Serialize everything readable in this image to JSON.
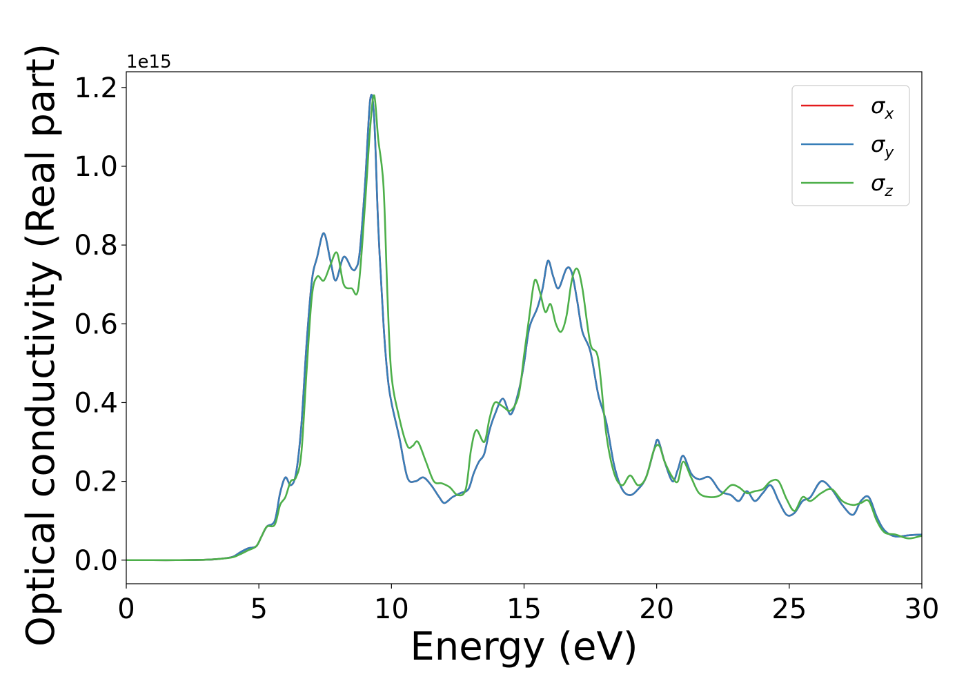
{
  "chart_data": {
    "type": "line",
    "xlabel": "Energy (eV)",
    "ylabel": "Optical conductivity (Real part)",
    "y_offset_label": "1e15",
    "y_scale": 1000000000000000.0,
    "xlim": [
      0,
      30
    ],
    "ylim": [
      -0.06,
      1.24
    ],
    "xticks": [
      0,
      5,
      10,
      15,
      20,
      25,
      30
    ],
    "xtick_labels": [
      "0",
      "5",
      "10",
      "15",
      "20",
      "25",
      "30"
    ],
    "yticks": [
      0.0,
      0.2,
      0.4,
      0.6,
      0.8,
      1.0,
      1.2
    ],
    "ytick_labels": [
      "0.0",
      "0.2",
      "0.4",
      "0.6",
      "0.8",
      "1.0",
      "1.2"
    ],
    "grid": false,
    "legend_position": "top-right",
    "series": [
      {
        "name": "σx",
        "symbol": "σ",
        "subscript": "x",
        "color": "#e41a1c",
        "x": [
          0,
          1,
          2,
          3,
          3.5,
          4,
          4.3,
          4.6,
          4.9,
          5.1,
          5.3,
          5.6,
          5.8,
          6.0,
          6.2,
          6.4,
          6.6,
          6.8,
          7.0,
          7.2,
          7.45,
          7.7,
          7.9,
          8.2,
          8.5,
          8.65,
          8.8,
          9.0,
          9.2,
          9.35,
          9.5,
          9.7,
          9.85,
          10.0,
          10.3,
          10.6,
          10.9,
          11.2,
          11.5,
          11.8,
          12.0,
          12.3,
          12.6,
          12.9,
          13.1,
          13.3,
          13.5,
          13.7,
          13.9,
          14.2,
          14.5,
          14.8,
          15.0,
          15.2,
          15.5,
          15.7,
          15.9,
          16.1,
          16.3,
          16.6,
          16.8,
          17.0,
          17.2,
          17.5,
          17.8,
          18.1,
          18.4,
          18.7,
          19.0,
          19.3,
          19.6,
          19.9,
          20.05,
          20.3,
          20.6,
          20.8,
          21.0,
          21.3,
          21.6,
          22.0,
          22.4,
          22.8,
          23.1,
          23.4,
          23.7,
          24.0,
          24.3,
          24.6,
          24.9,
          25.2,
          25.5,
          25.8,
          26.2,
          26.6,
          27.0,
          27.4,
          27.7,
          28.0,
          28.3,
          28.6,
          29.0,
          29.5,
          30.0
        ],
        "values": [
          0,
          0,
          0,
          0.001,
          0.003,
          0.008,
          0.02,
          0.03,
          0.035,
          0.06,
          0.085,
          0.1,
          0.17,
          0.21,
          0.19,
          0.22,
          0.34,
          0.55,
          0.71,
          0.77,
          0.83,
          0.76,
          0.71,
          0.77,
          0.74,
          0.74,
          0.78,
          0.95,
          1.17,
          1.12,
          0.85,
          0.6,
          0.47,
          0.4,
          0.31,
          0.21,
          0.2,
          0.21,
          0.19,
          0.16,
          0.145,
          0.16,
          0.17,
          0.18,
          0.22,
          0.25,
          0.27,
          0.33,
          0.37,
          0.41,
          0.37,
          0.43,
          0.5,
          0.59,
          0.64,
          0.69,
          0.76,
          0.72,
          0.69,
          0.74,
          0.73,
          0.66,
          0.58,
          0.53,
          0.42,
          0.35,
          0.24,
          0.18,
          0.165,
          0.18,
          0.21,
          0.28,
          0.305,
          0.25,
          0.2,
          0.23,
          0.265,
          0.22,
          0.205,
          0.21,
          0.175,
          0.165,
          0.15,
          0.175,
          0.15,
          0.17,
          0.19,
          0.15,
          0.115,
          0.12,
          0.15,
          0.16,
          0.2,
          0.18,
          0.14,
          0.115,
          0.15,
          0.16,
          0.11,
          0.075,
          0.06,
          0.063,
          0.065
        ]
      },
      {
        "name": "σy",
        "symbol": "σ",
        "subscript": "y",
        "color": "#377eb8",
        "x": [
          0,
          1,
          2,
          3,
          3.5,
          4,
          4.3,
          4.6,
          4.9,
          5.1,
          5.3,
          5.6,
          5.8,
          6.0,
          6.2,
          6.4,
          6.6,
          6.8,
          7.0,
          7.2,
          7.45,
          7.7,
          7.9,
          8.2,
          8.5,
          8.65,
          8.8,
          9.0,
          9.2,
          9.35,
          9.5,
          9.7,
          9.85,
          10.0,
          10.3,
          10.6,
          10.9,
          11.2,
          11.5,
          11.8,
          12.0,
          12.3,
          12.6,
          12.9,
          13.1,
          13.3,
          13.5,
          13.7,
          13.9,
          14.2,
          14.5,
          14.8,
          15.0,
          15.2,
          15.5,
          15.7,
          15.9,
          16.1,
          16.3,
          16.6,
          16.8,
          17.0,
          17.2,
          17.5,
          17.8,
          18.1,
          18.4,
          18.7,
          19.0,
          19.3,
          19.6,
          19.9,
          20.05,
          20.3,
          20.6,
          20.8,
          21.0,
          21.3,
          21.6,
          22.0,
          22.4,
          22.8,
          23.1,
          23.4,
          23.7,
          24.0,
          24.3,
          24.6,
          24.9,
          25.2,
          25.5,
          25.8,
          26.2,
          26.6,
          27.0,
          27.4,
          27.7,
          28.0,
          28.3,
          28.6,
          29.0,
          29.5,
          30.0
        ],
        "values": [
          0,
          0,
          0,
          0.001,
          0.003,
          0.008,
          0.02,
          0.03,
          0.035,
          0.06,
          0.085,
          0.1,
          0.17,
          0.21,
          0.19,
          0.22,
          0.34,
          0.55,
          0.71,
          0.77,
          0.83,
          0.76,
          0.71,
          0.77,
          0.74,
          0.74,
          0.78,
          0.95,
          1.17,
          1.12,
          0.85,
          0.6,
          0.47,
          0.4,
          0.31,
          0.21,
          0.2,
          0.21,
          0.19,
          0.16,
          0.145,
          0.16,
          0.17,
          0.18,
          0.22,
          0.25,
          0.27,
          0.33,
          0.37,
          0.41,
          0.37,
          0.43,
          0.5,
          0.59,
          0.64,
          0.69,
          0.76,
          0.72,
          0.69,
          0.74,
          0.73,
          0.66,
          0.58,
          0.53,
          0.42,
          0.35,
          0.24,
          0.18,
          0.165,
          0.18,
          0.21,
          0.28,
          0.305,
          0.25,
          0.2,
          0.23,
          0.265,
          0.22,
          0.205,
          0.21,
          0.175,
          0.165,
          0.15,
          0.175,
          0.15,
          0.17,
          0.19,
          0.15,
          0.115,
          0.12,
          0.15,
          0.16,
          0.2,
          0.18,
          0.14,
          0.115,
          0.15,
          0.16,
          0.11,
          0.075,
          0.06,
          0.063,
          0.065
        ]
      },
      {
        "name": "σz",
        "symbol": "σ",
        "subscript": "z",
        "color": "#4daf4a",
        "x": [
          0,
          1,
          2,
          3,
          3.5,
          4,
          4.3,
          4.6,
          4.9,
          5.1,
          5.3,
          5.6,
          5.8,
          6.0,
          6.2,
          6.4,
          6.6,
          6.8,
          7.0,
          7.2,
          7.45,
          7.7,
          7.95,
          8.2,
          8.5,
          8.75,
          9.0,
          9.2,
          9.35,
          9.5,
          9.7,
          9.85,
          10.0,
          10.3,
          10.6,
          10.8,
          11.0,
          11.3,
          11.6,
          11.9,
          12.2,
          12.5,
          12.8,
          13.0,
          13.2,
          13.5,
          13.7,
          13.9,
          14.2,
          14.5,
          14.8,
          15.0,
          15.2,
          15.4,
          15.6,
          15.8,
          16.0,
          16.2,
          16.4,
          16.6,
          16.8,
          17.0,
          17.2,
          17.5,
          17.8,
          18.1,
          18.4,
          18.7,
          19.0,
          19.3,
          19.6,
          19.9,
          20.1,
          20.3,
          20.6,
          20.8,
          21.0,
          21.3,
          21.6,
          22.0,
          22.4,
          22.8,
          23.1,
          23.4,
          23.7,
          24.0,
          24.3,
          24.6,
          24.9,
          25.2,
          25.5,
          25.8,
          26.2,
          26.6,
          27.0,
          27.4,
          27.7,
          28.0,
          28.3,
          28.6,
          29.0,
          29.5,
          30.0
        ],
        "values": [
          0,
          0,
          0,
          0.001,
          0.003,
          0.007,
          0.015,
          0.025,
          0.035,
          0.06,
          0.085,
          0.09,
          0.14,
          0.16,
          0.2,
          0.21,
          0.27,
          0.48,
          0.67,
          0.72,
          0.71,
          0.75,
          0.78,
          0.7,
          0.69,
          0.69,
          0.9,
          1.1,
          1.18,
          1.07,
          0.95,
          0.67,
          0.47,
          0.36,
          0.29,
          0.29,
          0.3,
          0.25,
          0.2,
          0.195,
          0.185,
          0.165,
          0.18,
          0.28,
          0.33,
          0.3,
          0.36,
          0.4,
          0.39,
          0.38,
          0.42,
          0.52,
          0.62,
          0.71,
          0.68,
          0.63,
          0.65,
          0.6,
          0.58,
          0.62,
          0.71,
          0.74,
          0.69,
          0.55,
          0.51,
          0.32,
          0.22,
          0.19,
          0.215,
          0.19,
          0.21,
          0.28,
          0.29,
          0.25,
          0.21,
          0.2,
          0.25,
          0.21,
          0.17,
          0.16,
          0.165,
          0.19,
          0.185,
          0.17,
          0.175,
          0.18,
          0.2,
          0.2,
          0.155,
          0.125,
          0.16,
          0.15,
          0.17,
          0.18,
          0.15,
          0.14,
          0.145,
          0.15,
          0.1,
          0.07,
          0.065,
          0.055,
          0.062
        ]
      }
    ]
  }
}
